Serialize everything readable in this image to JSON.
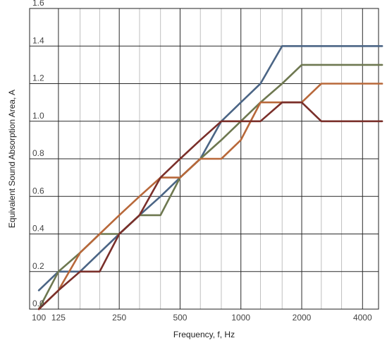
{
  "chart_data": {
    "type": "line",
    "xlabel": "Frequency, f, Hz",
    "ylabel": "Equivalent Sound Absorption Area, A",
    "x_scale": "log",
    "xlim": [
      90,
      4800
    ],
    "ylim": [
      0,
      1.6
    ],
    "x_tick_labels": [
      "100",
      "125",
      "250",
      "500",
      "1000",
      "2000",
      "4000"
    ],
    "x_tick_values": [
      100,
      125,
      250,
      500,
      1000,
      2000,
      4000
    ],
    "y_tick_labels": [
      "0.0",
      "0.2",
      "0.4",
      "0.6",
      "0.8",
      "1.0",
      "1.2",
      "1.4",
      "1.6"
    ],
    "y_tick_values": [
      0,
      0.2,
      0.4,
      0.6,
      0.8,
      1.0,
      1.2,
      1.4,
      1.6
    ],
    "minor_gridlines_x": [
      160,
      200,
      315,
      400,
      630,
      800,
      1250,
      1600,
      2500,
      3150
    ],
    "major_gridlines_x": [
      125,
      250,
      500,
      1000,
      2000,
      4000
    ],
    "grid": true,
    "series": [
      {
        "color": "#4b6585",
        "x": [
          100,
          125,
          160,
          200,
          250,
          315,
          400,
          500,
          630,
          800,
          1000,
          1250,
          1600,
          2000,
          2500,
          3150,
          4000,
          5000
        ],
        "y": [
          0.1,
          0.2,
          0.2,
          0.3,
          0.4,
          0.5,
          0.6,
          0.7,
          0.8,
          1.0,
          1.1,
          1.2,
          1.4,
          1.4,
          1.4,
          1.4,
          1.4,
          1.4
        ]
      },
      {
        "color": "#6e7850",
        "x": [
          100,
          125,
          160,
          200,
          250,
          315,
          400,
          500,
          630,
          800,
          1000,
          1250,
          1600,
          2000,
          2500,
          3150,
          4000,
          5000
        ],
        "y": [
          0.0,
          0.2,
          0.3,
          0.4,
          0.4,
          0.5,
          0.5,
          0.7,
          0.8,
          0.9,
          1.0,
          1.1,
          1.2,
          1.3,
          1.3,
          1.3,
          1.3,
          1.3
        ]
      },
      {
        "color": "#b8683a",
        "x": [
          100,
          125,
          160,
          200,
          250,
          315,
          400,
          500,
          630,
          800,
          1000,
          1250,
          1600,
          2000,
          2500,
          3150,
          4000,
          5000
        ],
        "y": [
          0.0,
          0.1,
          0.3,
          0.4,
          0.5,
          0.6,
          0.7,
          0.7,
          0.8,
          0.8,
          0.9,
          1.1,
          1.1,
          1.1,
          1.2,
          1.2,
          1.2,
          1.2
        ]
      },
      {
        "color": "#7a2f2a",
        "x": [
          100,
          125,
          160,
          200,
          250,
          315,
          400,
          500,
          630,
          800,
          1000,
          1250,
          1600,
          2000,
          2500,
          3150,
          4000,
          5000
        ],
        "y": [
          0.0,
          0.1,
          0.2,
          0.2,
          0.4,
          0.5,
          0.7,
          0.8,
          0.9,
          1.0,
          1.0,
          1.0,
          1.1,
          1.1,
          1.0,
          1.0,
          1.0,
          1.0
        ]
      }
    ]
  }
}
